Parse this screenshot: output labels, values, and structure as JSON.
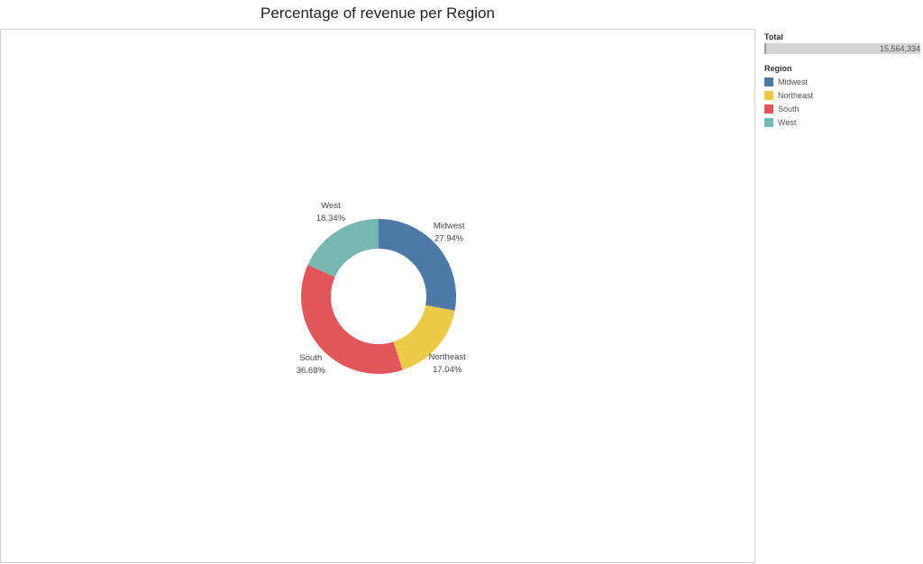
{
  "title": "Percentage of revenue per Region",
  "total": {
    "heading": "Total",
    "value": "15,564,334"
  },
  "legend": {
    "heading": "Region",
    "items": [
      {
        "label": "Midwest",
        "color": "#4e79a7"
      },
      {
        "label": "Northeast",
        "color": "#edc948"
      },
      {
        "label": "South",
        "color": "#e15759"
      },
      {
        "label": "West",
        "color": "#76b7b2"
      }
    ]
  },
  "chart_data": {
    "type": "pie",
    "variant": "donut",
    "title": "Percentage of revenue per Region",
    "series_name": "Region",
    "categories": [
      "Midwest",
      "Northeast",
      "South",
      "West"
    ],
    "values": [
      27.94,
      17.04,
      36.68,
      18.34
    ],
    "value_labels": [
      "27.94%",
      "17.04%",
      "36.68%",
      "18.34%"
    ],
    "colors": [
      "#4e79a7",
      "#edc948",
      "#e15759",
      "#76b7b2"
    ],
    "start_angle_deg": 0,
    "direction": "clockwise",
    "legend_position": "right"
  }
}
